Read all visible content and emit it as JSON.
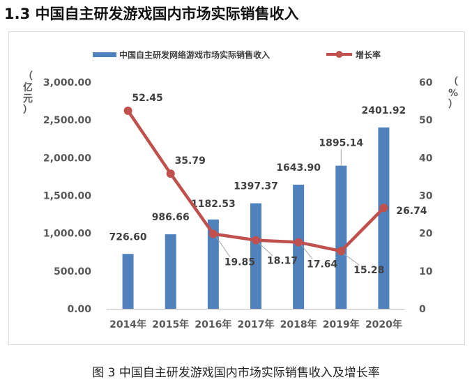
{
  "heading": "1.3 中国自主研发游戏国内市场实际销售收入",
  "caption": "图 3  中国自主研发游戏国内市场实际销售收入及增长率",
  "colors": {
    "bar": "#4f81bd",
    "line": "#c0504d",
    "axis": "#bfbfbf",
    "text": "#595959"
  },
  "chart_data": {
    "type": "bar",
    "categories": [
      "2014年",
      "2015年",
      "2016年",
      "2017年",
      "2018年",
      "2019年",
      "2020年"
    ],
    "series": [
      {
        "name": "中国自主研发网络游戏市场实际销售收入",
        "type": "bar",
        "axis": "left",
        "values": [
          726.6,
          986.66,
          1182.53,
          1397.37,
          1643.9,
          1895.14,
          2401.92
        ],
        "labels": [
          "726.60",
          "986.66",
          "1182.53",
          "1397.37",
          "1643.90",
          "1895.14",
          "2401.92"
        ]
      },
      {
        "name": "增长率",
        "type": "line",
        "axis": "right",
        "values": [
          52.45,
          35.79,
          19.85,
          18.17,
          17.64,
          15.28,
          26.74
        ],
        "labels": [
          "52.45",
          "35.79",
          "19.85",
          "18.17",
          "17.64",
          "15.28",
          "26.74"
        ]
      }
    ],
    "y_left": {
      "label": "（亿元）",
      "min": 0,
      "max": 3000,
      "ticks": [
        "0.00",
        "500.00",
        "1,000.00",
        "1,500.00",
        "2,000.00",
        "2,500.00",
        "3,000.00"
      ]
    },
    "y_right": {
      "label": "（%）",
      "min": 0,
      "max": 60,
      "ticks": [
        "0",
        "10",
        "20",
        "30",
        "40",
        "50",
        "60"
      ]
    },
    "legend": "top",
    "grid": false
  }
}
